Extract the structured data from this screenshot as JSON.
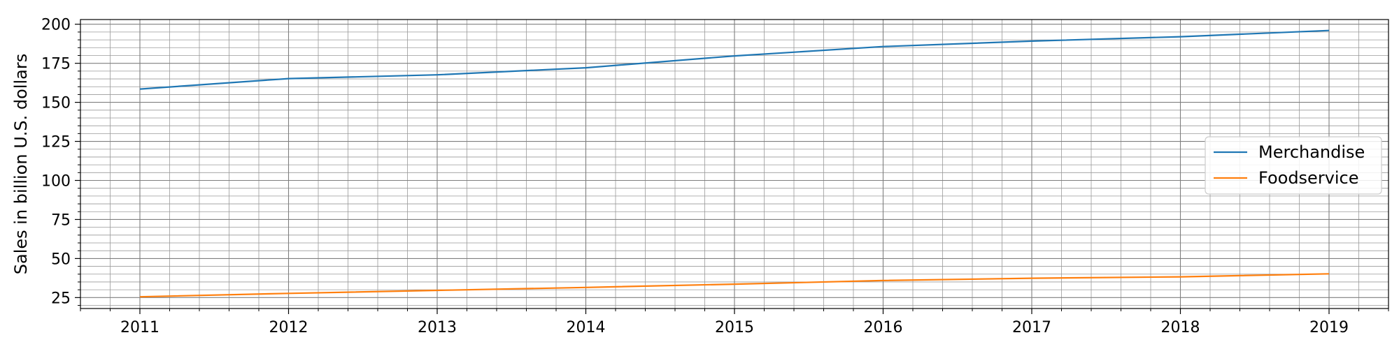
{
  "chart_data": {
    "type": "line",
    "title": "",
    "xlabel": "",
    "ylabel": "Sales in billion U.S. dollars",
    "x": [
      2011,
      2012,
      2013,
      2014,
      2015,
      2016,
      2017,
      2018,
      2019
    ],
    "xlim": [
      2010.6,
      2019.4
    ],
    "ylim": [
      18,
      203
    ],
    "x_ticks": [
      2011,
      2012,
      2013,
      2014,
      2015,
      2016,
      2017,
      2018,
      2019
    ],
    "y_ticks": [
      25,
      50,
      75,
      100,
      125,
      150,
      175,
      200
    ],
    "grid": "major and minor",
    "legend_position": "center-right",
    "series": [
      {
        "name": "Merchandise",
        "color": "#1f77b4",
        "values": [
          158.5,
          165.2,
          167.6,
          172.1,
          179.7,
          185.7,
          189.2,
          192.0,
          196.0
        ]
      },
      {
        "name": "Foodservice",
        "color": "#ff7f0e",
        "values": [
          25.5,
          27.7,
          29.6,
          31.5,
          33.6,
          35.9,
          37.4,
          38.3,
          40.2
        ]
      }
    ]
  }
}
